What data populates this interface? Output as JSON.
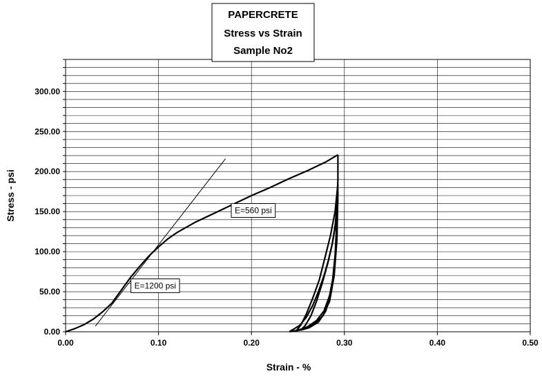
{
  "chart_data": {
    "type": "line",
    "title": [
      "PAPERCRETE",
      "Stress vs Strain",
      "Sample No2"
    ],
    "xlabel": "Strain - %",
    "ylabel": "Stress - psi",
    "xlim": [
      0,
      0.5
    ],
    "ylim": [
      0,
      340
    ],
    "x_ticks": [
      "0.00",
      "0.10",
      "0.20",
      "0.30",
      "0.40",
      "0.50"
    ],
    "y_ticks": [
      "0.00",
      "50.00",
      "100.00",
      "150.00",
      "200.00",
      "250.00",
      "300.00"
    ],
    "grid": true,
    "series": [
      {
        "x": [
          0,
          0.01,
          0.02,
          0.03,
          0.04,
          0.05,
          0.06,
          0.07,
          0.08,
          0.09,
          0.1,
          0.11,
          0.12,
          0.14,
          0.16,
          0.18,
          0.2,
          0.22,
          0.24,
          0.26,
          0.28,
          0.293
        ],
        "y": [
          0,
          4,
          9,
          16,
          25,
          36,
          52,
          68,
          82,
          95,
          106,
          116,
          124,
          137,
          148,
          159,
          170,
          180,
          191,
          201,
          212,
          221
        ],
        "color": "#000000"
      },
      {
        "x": [
          0.293,
          0.293,
          0.292,
          0.29,
          0.287,
          0.283,
          0.278,
          0.272,
          0.266,
          0.259,
          0.252,
          0.245,
          0.242,
          0.241
        ],
        "y": [
          221,
          190,
          160,
          130,
          110,
          90,
          70,
          50,
          33,
          18,
          8,
          3,
          1,
          0
        ],
        "color": "#000000"
      },
      {
        "x": [
          0.241,
          0.25,
          0.26,
          0.27,
          0.278,
          0.284,
          0.289,
          0.292,
          0.293
        ],
        "y": [
          0,
          2,
          6,
          14,
          26,
          45,
          75,
          120,
          185
        ],
        "color": "#000000"
      },
      {
        "x": [
          0.293,
          0.29,
          0.285,
          0.279,
          0.273,
          0.266,
          0.259,
          0.253,
          0.248
        ],
        "y": [
          185,
          150,
          120,
          92,
          65,
          42,
          22,
          8,
          1
        ],
        "color": "#000000"
      },
      {
        "x": [
          0.248,
          0.258,
          0.268,
          0.277,
          0.284,
          0.289,
          0.292,
          0.293
        ],
        "y": [
          1,
          4,
          10,
          20,
          38,
          70,
          115,
          175
        ],
        "color": "#000000"
      },
      {
        "x": [
          0.293,
          0.291,
          0.287,
          0.282,
          0.276,
          0.27,
          0.264,
          0.258,
          0.253
        ],
        "y": [
          175,
          140,
          110,
          85,
          60,
          38,
          20,
          8,
          2
        ],
        "color": "#000000"
      },
      {
        "x": [
          0.253,
          0.262,
          0.272,
          0.28,
          0.286,
          0.29,
          0.293
        ],
        "y": [
          2,
          5,
          12,
          26,
          50,
          95,
          165
        ],
        "color": "#000000"
      }
    ],
    "tangent_line": {
      "x": [
        0.032,
        0.172
      ],
      "y": [
        7,
        216
      ]
    },
    "annotations": [
      {
        "text": "E=560 psi",
        "x": 0.182,
        "y": 148
      },
      {
        "text": "E=1200 psi",
        "x": 0.074,
        "y": 54
      }
    ]
  }
}
